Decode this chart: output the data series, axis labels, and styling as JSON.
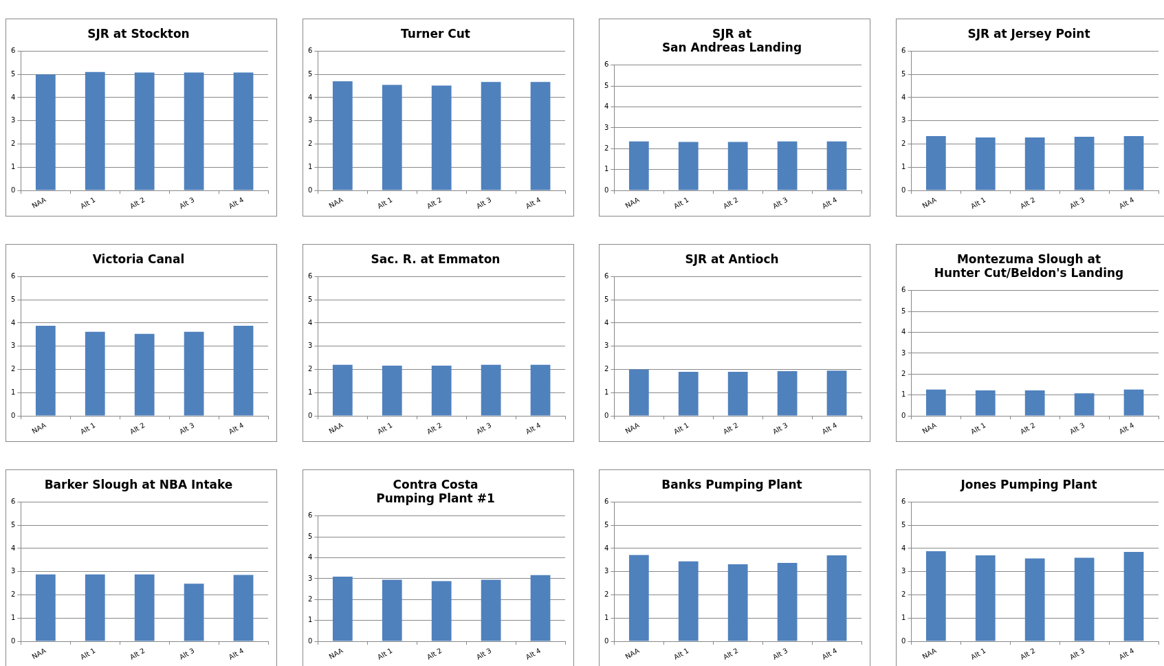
{
  "chart_data": [
    {
      "type": "bar",
      "title": "SJR at Stockton",
      "categories": [
        "NAA",
        "Alt 1",
        "Alt 2",
        "Alt 3",
        "Alt 4"
      ],
      "values": [
        5.0,
        5.1,
        5.08,
        5.08,
        5.08
      ],
      "color": "#4f81bd",
      "ylim": [
        0,
        6
      ],
      "yticks": [
        0,
        1,
        2,
        3,
        4,
        5,
        6
      ],
      "grid": "y",
      "legend": false
    },
    {
      "type": "bar",
      "title": "Turner Cut",
      "categories": [
        "NAA",
        "Alt 1",
        "Alt 2",
        "Alt 3",
        "Alt 4"
      ],
      "values": [
        4.7,
        4.55,
        4.52,
        4.67,
        4.67
      ],
      "color": "#4f81bd",
      "ylim": [
        0,
        6
      ],
      "yticks": [
        0,
        1,
        2,
        3,
        4,
        5,
        6
      ],
      "grid": "y",
      "legend": false
    },
    {
      "type": "bar",
      "title": "SJR at\nSan Andreas Landing",
      "categories": [
        "NAA",
        "Alt 1",
        "Alt 2",
        "Alt 3",
        "Alt 4"
      ],
      "values": [
        2.35,
        2.32,
        2.32,
        2.35,
        2.35
      ],
      "color": "#4f81bd",
      "ylim": [
        0,
        6
      ],
      "yticks": [
        0,
        1,
        2,
        3,
        4,
        5,
        6
      ],
      "grid": "y",
      "legend": false
    },
    {
      "type": "bar",
      "title": "SJR at Jersey Point",
      "categories": [
        "NAA",
        "Alt 1",
        "Alt 2",
        "Alt 3",
        "Alt 4"
      ],
      "values": [
        2.34,
        2.28,
        2.28,
        2.31,
        2.34
      ],
      "color": "#4f81bd",
      "ylim": [
        0,
        6
      ],
      "yticks": [
        0,
        1,
        2,
        3,
        4,
        5,
        6
      ],
      "grid": "y",
      "legend": false
    },
    {
      "type": "bar",
      "title": "Victoria Canal",
      "categories": [
        "NAA",
        "Alt 1",
        "Alt 2",
        "Alt 3",
        "Alt 4"
      ],
      "values": [
        3.88,
        3.62,
        3.53,
        3.62,
        3.88
      ],
      "color": "#4f81bd",
      "ylim": [
        0,
        6
      ],
      "yticks": [
        0,
        1,
        2,
        3,
        4,
        5,
        6
      ],
      "grid": "y",
      "legend": false
    },
    {
      "type": "bar",
      "title": "Sac. R. at Emmaton",
      "categories": [
        "NAA",
        "Alt 1",
        "Alt 2",
        "Alt 3",
        "Alt 4"
      ],
      "values": [
        2.2,
        2.16,
        2.16,
        2.2,
        2.2
      ],
      "color": "#4f81bd",
      "ylim": [
        0,
        6
      ],
      "yticks": [
        0,
        1,
        2,
        3,
        4,
        5,
        6
      ],
      "grid": "y",
      "legend": false
    },
    {
      "type": "bar",
      "title": "SJR at Antioch",
      "categories": [
        "NAA",
        "Alt 1",
        "Alt 2",
        "Alt 3",
        "Alt 4"
      ],
      "values": [
        2.0,
        1.9,
        1.9,
        1.93,
        1.95
      ],
      "color": "#4f81bd",
      "ylim": [
        0,
        6
      ],
      "yticks": [
        0,
        1,
        2,
        3,
        4,
        5,
        6
      ],
      "grid": "y",
      "legend": false
    },
    {
      "type": "bar",
      "title": "Montezuma Slough at\nHunter Cut/Beldon's Landing",
      "categories": [
        "NAA",
        "Alt 1",
        "Alt 2",
        "Alt 3",
        "Alt 4"
      ],
      "values": [
        1.26,
        1.22,
        1.22,
        1.08,
        1.26
      ],
      "color": "#4f81bd",
      "ylim": [
        0,
        6
      ],
      "yticks": [
        0,
        1,
        2,
        3,
        4,
        5,
        6
      ],
      "grid": "y",
      "legend": false
    },
    {
      "type": "bar",
      "title": "Barker Slough at NBA Intake",
      "categories": [
        "NAA",
        "Alt 1",
        "Alt 2",
        "Alt 3",
        "Alt 4"
      ],
      "values": [
        2.88,
        2.88,
        2.88,
        2.48,
        2.86
      ],
      "color": "#4f81bd",
      "ylim": [
        0,
        6
      ],
      "yticks": [
        0,
        1,
        2,
        3,
        4,
        5,
        6
      ],
      "grid": "y",
      "legend": false
    },
    {
      "type": "bar",
      "title": "Contra Costa\nPumping Plant #1",
      "categories": [
        "NAA",
        "Alt 1",
        "Alt 2",
        "Alt 3",
        "Alt 4"
      ],
      "values": [
        3.1,
        2.95,
        2.88,
        2.95,
        3.17
      ],
      "color": "#4f81bd",
      "ylim": [
        0,
        6
      ],
      "yticks": [
        0,
        1,
        2,
        3,
        4,
        5,
        6
      ],
      "grid": "y",
      "legend": false
    },
    {
      "type": "bar",
      "title": "Banks Pumping Plant",
      "categories": [
        "NAA",
        "Alt 1",
        "Alt 2",
        "Alt 3",
        "Alt 4"
      ],
      "values": [
        3.72,
        3.44,
        3.32,
        3.38,
        3.7
      ],
      "color": "#4f81bd",
      "ylim": [
        0,
        6
      ],
      "yticks": [
        0,
        1,
        2,
        3,
        4,
        5,
        6
      ],
      "grid": "y",
      "legend": false
    },
    {
      "type": "bar",
      "title": "Jones Pumping Plant",
      "categories": [
        "NAA",
        "Alt 1",
        "Alt 2",
        "Alt 3",
        "Alt 4"
      ],
      "values": [
        3.88,
        3.7,
        3.57,
        3.6,
        3.85
      ],
      "color": "#4f81bd",
      "ylim": [
        0,
        6
      ],
      "yticks": [
        0,
        1,
        2,
        3,
        4,
        5,
        6
      ],
      "grid": "y",
      "legend": false
    }
  ]
}
